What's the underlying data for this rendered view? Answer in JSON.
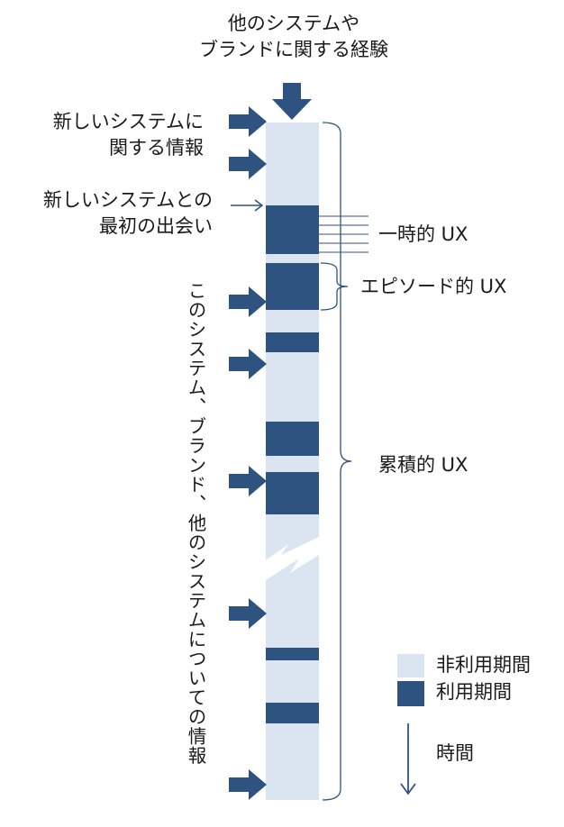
{
  "top_label": {
    "line1": "他のシステムや",
    "line2": "ブランドに関する経験"
  },
  "left_labels": {
    "info_new_system": {
      "line1": "新しいシステムに",
      "line2": "関する情報"
    },
    "first_encounter": {
      "line1": "新しいシステムとの",
      "line2": "最初の出会い"
    },
    "vertical_info": "このシステム、ブランド、他のシステムについての情報"
  },
  "ux_labels": {
    "momentary": "一時的 UX",
    "episodic": "エピソード的 UX",
    "cumulative": "累積的 UX"
  },
  "legend": {
    "non_use": {
      "label": "非利用期間",
      "color": "#dbe5f1"
    },
    "use": {
      "label": "利用期間",
      "color": "#2e5381"
    },
    "time": "時間"
  },
  "colors": {
    "arrow": "#2e5381",
    "bracket": "#2e5381",
    "line": "#2e5381"
  }
}
